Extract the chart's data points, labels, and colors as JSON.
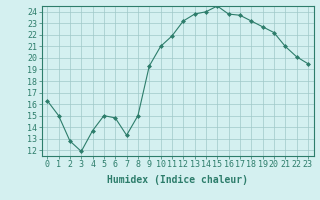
{
  "x": [
    0,
    1,
    2,
    3,
    4,
    5,
    6,
    7,
    8,
    9,
    10,
    11,
    12,
    13,
    14,
    15,
    16,
    17,
    18,
    19,
    20,
    21,
    22,
    23
  ],
  "y": [
    16.3,
    15.0,
    12.8,
    11.9,
    13.7,
    15.0,
    14.8,
    13.3,
    15.0,
    19.3,
    21.0,
    21.9,
    23.2,
    23.8,
    24.0,
    24.5,
    23.8,
    23.7,
    23.2,
    22.7,
    22.2,
    21.0,
    20.1,
    19.5
  ],
  "line_color": "#2d7d6b",
  "marker": "D",
  "marker_size": 2,
  "bg_color": "#d4f0f0",
  "grid_color": "#a0c8c8",
  "xlabel": "Humidex (Indice chaleur)",
  "xlim": [
    -0.5,
    23.5
  ],
  "ylim": [
    11.5,
    24.5
  ],
  "yticks": [
    12,
    13,
    14,
    15,
    16,
    17,
    18,
    19,
    20,
    21,
    22,
    23,
    24
  ],
  "xticks": [
    0,
    1,
    2,
    3,
    4,
    5,
    6,
    7,
    8,
    9,
    10,
    11,
    12,
    13,
    14,
    15,
    16,
    17,
    18,
    19,
    20,
    21,
    22,
    23
  ],
  "axis_color": "#2d7d6b",
  "tick_color": "#2d7d6b",
  "label_fontsize": 7,
  "tick_fontsize": 6
}
